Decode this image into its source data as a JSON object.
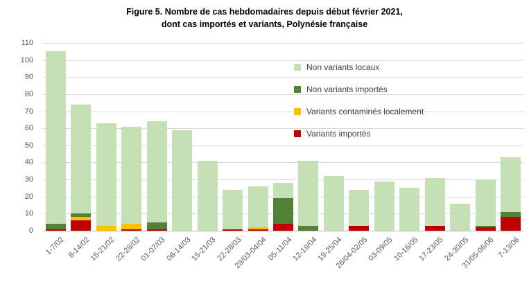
{
  "title": {
    "line1": "Figure 5. Nombre de cas hebdomadaires depuis début février 2021,",
    "line2": "dont cas importés et variants, Polynésie française"
  },
  "chart_data": {
    "type": "bar",
    "stacked": true,
    "title": "Figure 5. Nombre de cas hebdomadaires depuis début février 2021, dont cas importés et variants, Polynésie française",
    "categories": [
      "1-7/02",
      "8-14/02",
      "15-21/02",
      "22-28/02",
      "01-07/03",
      "08-14/03",
      "15-21/03",
      "22-28/03",
      "29/03-04/04",
      "05-11/04",
      "12-18/04",
      "19-25/04",
      "26/04-02/05",
      "03-09/05",
      "10-16/05",
      "17-23/05",
      "24-30/05",
      "31/05-06/06",
      "7-13/06"
    ],
    "series": [
      {
        "name": "Variants importés",
        "color": "#c00000",
        "values": [
          1,
          6,
          0,
          1,
          1,
          0,
          0,
          1,
          1,
          4,
          0,
          0,
          3,
          0,
          0,
          3,
          0,
          2,
          8
        ]
      },
      {
        "name": "Variants contaminés localement",
        "color": "#ffc000",
        "values": [
          0,
          2,
          3,
          3,
          0,
          0,
          0,
          0,
          1,
          0,
          0,
          0,
          0,
          0,
          0,
          0,
          0,
          0,
          0
        ]
      },
      {
        "name": "Non variants importés",
        "color": "#538135",
        "values": [
          3,
          2,
          0,
          0,
          4,
          0,
          0,
          0,
          0,
          15,
          3,
          0,
          0,
          0,
          0,
          0,
          0,
          1,
          3
        ]
      },
      {
        "name": "Non variants locaux",
        "color": "#c5e0b4",
        "values": [
          101,
          64,
          60,
          57,
          59,
          59,
          41,
          23,
          24,
          9,
          38,
          32,
          21,
          29,
          25,
          28,
          16,
          27,
          32
        ]
      }
    ],
    "totals": [
      105,
      74,
      63,
      61,
      64,
      59,
      41,
      24,
      26,
      28,
      41,
      32,
      24,
      29,
      25,
      31,
      16,
      30,
      43
    ],
    "ylim": [
      0,
      110
    ],
    "yticks": [
      0,
      10,
      20,
      30,
      40,
      50,
      60,
      70,
      80,
      90,
      100,
      110
    ],
    "grid": true,
    "legend_position": "inside-top-right",
    "legend_order": [
      "Non variants locaux",
      "Non variants importés",
      "Variants contaminés localement",
      "Variants importés"
    ]
  },
  "colors": {
    "gridline": "#d9d9d9",
    "axis_line": "#bfbfbf",
    "tick_text": "#595959",
    "legend_text": "#404040",
    "background": "#ffffff"
  }
}
